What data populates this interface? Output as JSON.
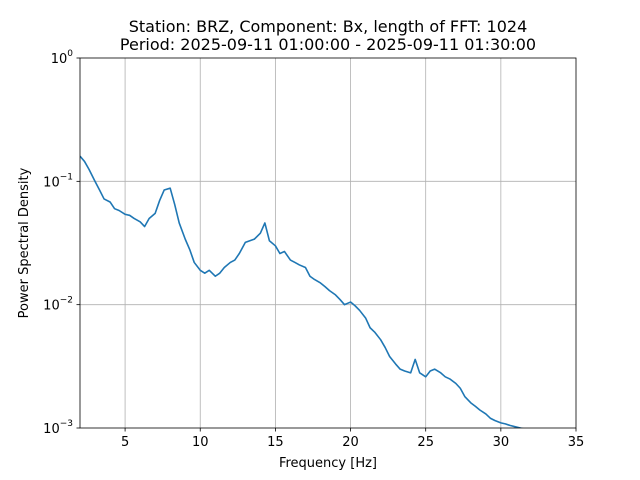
{
  "chart_data": {
    "type": "line",
    "title_line1": "Station: BRZ, Component: Bx, length of FFT: 1024",
    "title_line2": "Period: 2025-09-11 01:00:00 - 2025-09-11 01:30:00",
    "xlabel": "Frequency [Hz]",
    "ylabel": "Power Spectral Density",
    "xlim": [
      2,
      35
    ],
    "ylim": [
      0.001,
      1
    ],
    "yscale": "log",
    "grid": true,
    "line_color": "#1f77b4",
    "x_ticks": [
      {
        "value": 5,
        "label": "5"
      },
      {
        "value": 10,
        "label": "10"
      },
      {
        "value": 15,
        "label": "15"
      },
      {
        "value": 20,
        "label": "20"
      },
      {
        "value": 25,
        "label": "25"
      },
      {
        "value": 30,
        "label": "30"
      },
      {
        "value": 35,
        "label": "35"
      }
    ],
    "y_ticks": [
      {
        "value": 0.001,
        "base": "10",
        "exp": "−3"
      },
      {
        "value": 0.01,
        "base": "10",
        "exp": "−2"
      },
      {
        "value": 0.1,
        "base": "10",
        "exp": "−1"
      },
      {
        "value": 1,
        "base": "10",
        "exp": "0"
      }
    ],
    "series": [
      {
        "x": [
          2.0,
          2.3,
          2.6,
          3.0,
          3.3,
          3.6,
          4.0,
          4.3,
          4.6,
          5.0,
          5.3,
          5.6,
          6.0,
          6.3,
          6.6,
          7.0,
          7.3,
          7.6,
          8.0,
          8.3,
          8.6,
          9.0,
          9.3,
          9.6,
          10.0,
          10.3,
          10.6,
          11.0,
          11.3,
          11.6,
          12.0,
          12.3,
          12.6,
          13.0,
          13.3,
          13.6,
          14.0,
          14.3,
          14.6,
          15.0,
          15.3,
          15.6,
          16.0,
          16.3,
          16.6,
          17.0,
          17.3,
          17.6,
          18.0,
          18.3,
          18.6,
          19.0,
          19.3,
          19.6,
          20.0,
          20.3,
          20.6,
          21.0,
          21.3,
          21.6,
          22.0,
          22.3,
          22.6,
          23.0,
          23.3,
          23.6,
          24.0,
          24.3,
          24.6,
          25.0,
          25.3,
          25.6,
          26.0,
          26.3,
          26.6,
          27.0,
          27.3,
          27.6,
          28.0,
          28.3,
          28.6,
          29.0,
          29.3,
          29.6,
          30.0,
          30.3,
          30.6,
          31.0,
          31.3,
          31.6,
          32.0,
          32.3,
          32.6,
          33.0
        ],
        "y": [
          0.16,
          0.145,
          0.125,
          0.1,
          0.085,
          0.072,
          0.068,
          0.06,
          0.058,
          0.054,
          0.053,
          0.05,
          0.047,
          0.043,
          0.05,
          0.055,
          0.07,
          0.085,
          0.088,
          0.065,
          0.046,
          0.034,
          0.028,
          0.022,
          0.019,
          0.018,
          0.019,
          0.017,
          0.018,
          0.02,
          0.022,
          0.023,
          0.026,
          0.032,
          0.033,
          0.034,
          0.038,
          0.046,
          0.033,
          0.03,
          0.026,
          0.027,
          0.023,
          0.022,
          0.021,
          0.02,
          0.017,
          0.016,
          0.015,
          0.014,
          0.013,
          0.012,
          0.011,
          0.01,
          0.0105,
          0.0098,
          0.009,
          0.0078,
          0.0065,
          0.006,
          0.0052,
          0.0045,
          0.0038,
          0.0033,
          0.003,
          0.0029,
          0.0028,
          0.0036,
          0.0028,
          0.0026,
          0.0029,
          0.003,
          0.0028,
          0.0026,
          0.0025,
          0.0023,
          0.0021,
          0.0018,
          0.0016,
          0.0015,
          0.0014,
          0.0013,
          0.0012,
          0.00115,
          0.0011,
          0.00108,
          0.00105,
          0.00102,
          0.001,
          0.00098,
          0.00096,
          0.00095,
          0.00094,
          0.00093
        ]
      }
    ]
  }
}
